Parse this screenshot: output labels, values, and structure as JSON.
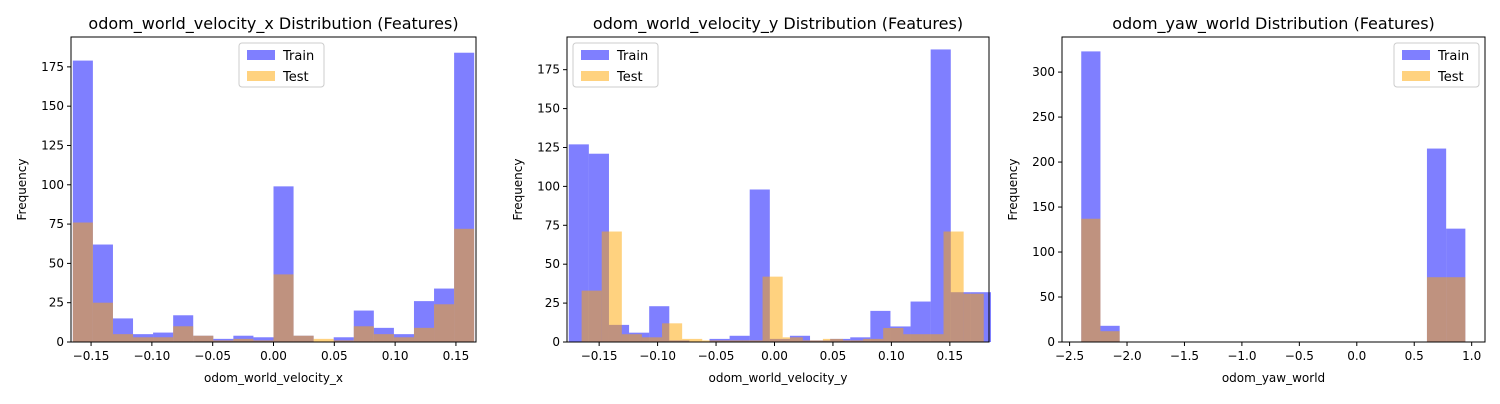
{
  "chart_data": [
    {
      "type": "bar",
      "title": "odom_world_velocity_x Distribution (Features)",
      "xlabel": "odom_world_velocity_x",
      "ylabel": "Frequency",
      "xlim": [
        -0.1665,
        0.1665
      ],
      "ylim": [
        0,
        194
      ],
      "xticks": [
        -0.15,
        -0.1,
        -0.05,
        0.0,
        0.05,
        0.1,
        0.15
      ],
      "xtick_labels": [
        "−0.15",
        "−0.10",
        "−0.05",
        "0.00",
        "0.05",
        "0.10",
        "0.15"
      ],
      "yticks": [
        0,
        25,
        50,
        75,
        100,
        125,
        150,
        175
      ],
      "ytick_labels": [
        "0",
        "25",
        "50",
        "75",
        "100",
        "125",
        "150",
        "175"
      ],
      "legend_position": "top-center",
      "series": [
        {
          "name": "Train",
          "color": "#0000ff",
          "bins": [
            [
              -0.165,
              -0.1485,
              179
            ],
            [
              -0.1485,
              -0.132,
              62
            ],
            [
              -0.132,
              -0.1155,
              15
            ],
            [
              -0.1155,
              -0.099,
              5
            ],
            [
              -0.099,
              -0.0825,
              6
            ],
            [
              -0.0825,
              -0.066,
              17
            ],
            [
              -0.066,
              -0.0495,
              4
            ],
            [
              -0.0495,
              -0.033,
              2
            ],
            [
              -0.033,
              -0.0165,
              4
            ],
            [
              -0.0165,
              0.0,
              3
            ],
            [
              0.0,
              0.0165,
              99
            ],
            [
              0.0165,
              0.033,
              4
            ],
            [
              0.033,
              0.0495,
              0
            ],
            [
              0.0495,
              0.066,
              3
            ],
            [
              0.066,
              0.0825,
              20
            ],
            [
              0.0825,
              0.099,
              9
            ],
            [
              0.099,
              0.1155,
              5
            ],
            [
              0.1155,
              0.132,
              26
            ],
            [
              0.132,
              0.1485,
              34
            ],
            [
              0.1485,
              0.165,
              184
            ]
          ]
        },
        {
          "name": "Test",
          "color": "#ffa500",
          "bins": [
            [
              -0.165,
              -0.1485,
              76
            ],
            [
              -0.1485,
              -0.132,
              25
            ],
            [
              -0.132,
              -0.1155,
              5
            ],
            [
              -0.1155,
              -0.099,
              3
            ],
            [
              -0.099,
              -0.0825,
              3
            ],
            [
              -0.0825,
              -0.066,
              10
            ],
            [
              -0.066,
              -0.0495,
              4
            ],
            [
              -0.0495,
              -0.033,
              1
            ],
            [
              -0.033,
              -0.0165,
              2
            ],
            [
              -0.0165,
              0.0,
              1
            ],
            [
              0.0,
              0.0165,
              43
            ],
            [
              0.0165,
              0.033,
              4
            ],
            [
              0.033,
              0.0495,
              2
            ],
            [
              0.0495,
              0.066,
              1
            ],
            [
              0.066,
              0.0825,
              10
            ],
            [
              0.0825,
              0.099,
              5
            ],
            [
              0.099,
              0.1155,
              3
            ],
            [
              0.1155,
              0.132,
              9
            ],
            [
              0.132,
              0.1485,
              24
            ],
            [
              0.1485,
              0.165,
              72
            ]
          ]
        }
      ]
    },
    {
      "type": "bar",
      "title": "odom_world_velocity_y Distribution (Features)",
      "xlabel": "odom_world_velocity_y",
      "ylabel": "Frequency",
      "xlim": [
        -0.1775,
        0.1835
      ],
      "ylim": [
        0,
        196
      ],
      "xticks": [
        -0.15,
        -0.1,
        -0.05,
        0.0,
        0.05,
        0.1,
        0.15
      ],
      "xtick_labels": [
        "−0.15",
        "−0.10",
        "−0.05",
        "0.00",
        "0.05",
        "0.10",
        "0.15"
      ],
      "yticks": [
        0,
        25,
        50,
        75,
        100,
        125,
        150,
        175
      ],
      "ytick_labels": [
        "0",
        "25",
        "50",
        "75",
        "100",
        "125",
        "150",
        "175"
      ],
      "legend_position": "top-left",
      "series": [
        {
          "name": "Train",
          "color": "#0000ff",
          "bins": [
            [
              -0.176,
              -0.1588,
              127
            ],
            [
              -0.1588,
              -0.1416,
              121
            ],
            [
              -0.1416,
              -0.1244,
              11
            ],
            [
              -0.1244,
              -0.1072,
              6
            ],
            [
              -0.1072,
              -0.09,
              23
            ],
            [
              -0.09,
              -0.0728,
              1
            ],
            [
              -0.0728,
              -0.0556,
              0
            ],
            [
              -0.0556,
              -0.0384,
              2
            ],
            [
              -0.0384,
              -0.0212,
              4
            ],
            [
              -0.0212,
              -0.004,
              98
            ],
            [
              -0.004,
              0.0132,
              2
            ],
            [
              0.0132,
              0.0304,
              4
            ],
            [
              0.0304,
              0.0476,
              1
            ],
            [
              0.0476,
              0.0648,
              2
            ],
            [
              0.0648,
              0.082,
              3
            ],
            [
              0.082,
              0.0992,
              20
            ],
            [
              0.0992,
              0.1164,
              10
            ],
            [
              0.1164,
              0.1336,
              26
            ],
            [
              0.1336,
              0.1508,
              188
            ],
            [
              0.1508,
              0.168,
              32
            ],
            [
              0.168,
              0.1852,
              32
            ]
          ]
        },
        {
          "name": "Test",
          "color": "#ffa500",
          "bins": [
            [
              -0.165,
              -0.1478,
              33
            ],
            [
              -0.1478,
              -0.1306,
              71
            ],
            [
              -0.1306,
              -0.1134,
              5
            ],
            [
              -0.1134,
              -0.0962,
              3
            ],
            [
              -0.0962,
              -0.079,
              12
            ],
            [
              -0.079,
              -0.0618,
              2
            ],
            [
              -0.0618,
              -0.0446,
              1
            ],
            [
              -0.0446,
              -0.0274,
              1
            ],
            [
              -0.0274,
              -0.0102,
              1
            ],
            [
              -0.0102,
              0.007,
              42
            ],
            [
              0.007,
              0.0242,
              3
            ],
            [
              0.0242,
              0.0414,
              1
            ],
            [
              0.0414,
              0.0586,
              2
            ],
            [
              0.0586,
              0.0758,
              1
            ],
            [
              0.0758,
              0.093,
              2
            ],
            [
              0.093,
              0.1102,
              9
            ],
            [
              0.1102,
              0.1274,
              5
            ],
            [
              0.1274,
              0.1446,
              5
            ],
            [
              0.1446,
              0.1618,
              71
            ],
            [
              0.1618,
              0.179,
              31
            ]
          ]
        }
      ]
    },
    {
      "type": "bar",
      "title": "odom_yaw_world Distribution (Features)",
      "xlabel": "odom_yaw_world",
      "ylabel": "Frequency",
      "xlim": [
        -2.566,
        1.116
      ],
      "ylim": [
        0,
        339
      ],
      "xticks": [
        -2.5,
        -2.0,
        -1.5,
        -1.0,
        -0.5,
        0.0,
        0.5,
        1.0
      ],
      "xtick_labels": [
        "−2.5",
        "−2.0",
        "−1.5",
        "−1.0",
        "−0.5",
        "0.0",
        "0.5",
        "1.0"
      ],
      "yticks": [
        0,
        50,
        100,
        150,
        200,
        250,
        300
      ],
      "ytick_labels": [
        "0",
        "50",
        "100",
        "150",
        "200",
        "250",
        "300"
      ],
      "legend_position": "top-right",
      "series": [
        {
          "name": "Train",
          "color": "#0000ff",
          "bins": [
            [
              -2.3985,
              -2.2313,
              323
            ],
            [
              -2.2313,
              -2.0641,
              18
            ],
            [
              0.6107,
              0.7779,
              215
            ],
            [
              0.7779,
              0.9451,
              126
            ]
          ]
        },
        {
          "name": "Test",
          "color": "#ffa500",
          "bins": [
            [
              -2.3985,
              -2.2313,
              137
            ],
            [
              -2.2313,
              -2.0641,
              12
            ],
            [
              0.6107,
              0.7779,
              72
            ],
            [
              0.7779,
              0.9451,
              72
            ]
          ]
        }
      ]
    }
  ]
}
